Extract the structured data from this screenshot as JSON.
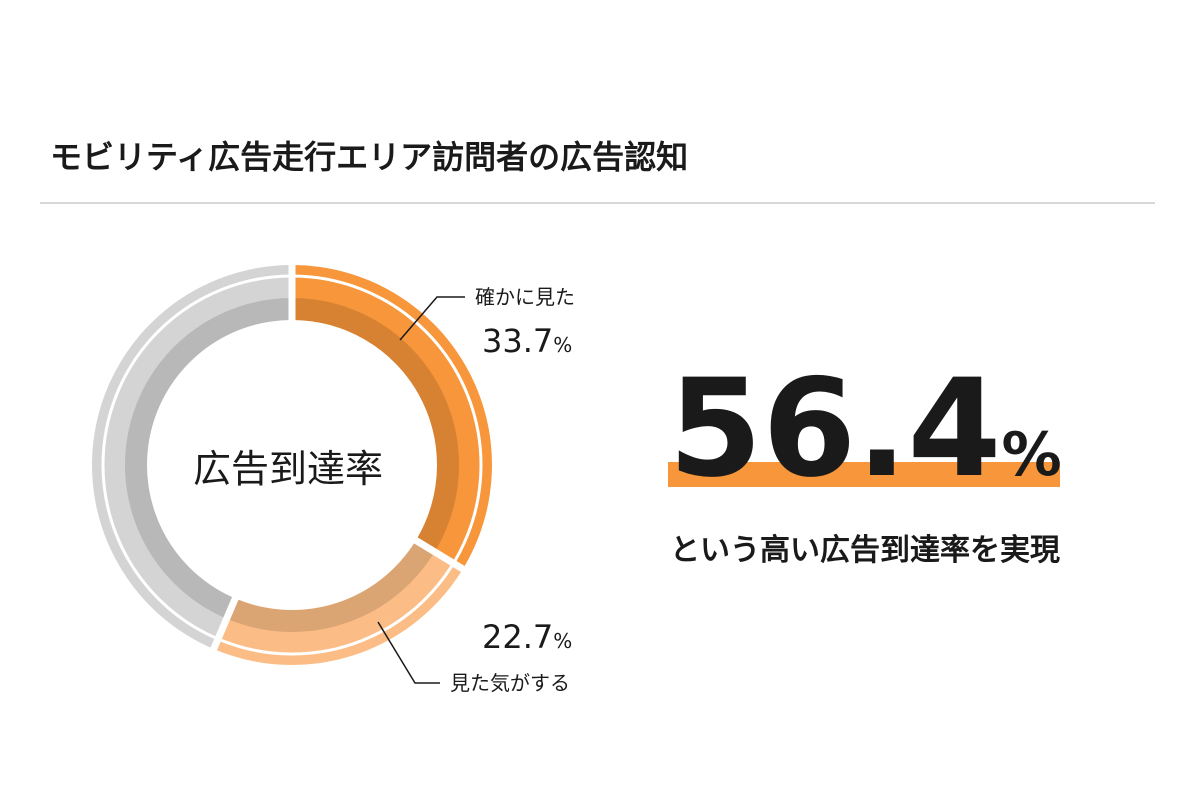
{
  "chart_data": {
    "type": "pie",
    "title": "モビリティ広告走行エリア訪問者の広告認知",
    "center_label": "広告到達率",
    "categories": [
      "確かに見た",
      "見た気がする",
      null
    ],
    "values": [
      33.7,
      22.7,
      43.6
    ],
    "value_labels": [
      "33.7%",
      "22.7%",
      null
    ],
    "colors": [
      "#f7963a",
      "#fbbd85",
      "#d4d4d4"
    ],
    "highlight": {
      "label": "56.4%",
      "caption": "という高い広告到達率を実現",
      "color": "#f7963a"
    }
  }
}
